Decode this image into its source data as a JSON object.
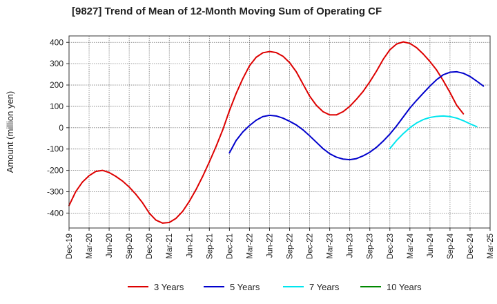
{
  "chart_data": {
    "type": "line",
    "title": "[9827]  Trend of Mean of 12-Month Moving Sum of Operating CF",
    "xlabel": "",
    "ylabel": "Amount (million yen)",
    "ylim": [
      -470,
      430
    ],
    "yticks": [
      -400,
      -300,
      -200,
      -100,
      0,
      100,
      200,
      300,
      400
    ],
    "xtick_labels": [
      "Dec-19",
      "Mar-20",
      "Jun-20",
      "Sep-20",
      "Dec-20",
      "Mar-21",
      "Jun-21",
      "Sep-21",
      "Dec-21",
      "Mar-22",
      "Jun-22",
      "Sep-22",
      "Dec-22",
      "Mar-23",
      "Jun-23",
      "Sep-23",
      "Dec-23",
      "Mar-24",
      "Jun-24",
      "Sep-24",
      "Dec-24",
      "Mar-25"
    ],
    "x_months": 63,
    "grid": true,
    "legend_position": "bottom",
    "series": [
      {
        "name": "3 Years",
        "color": "#dd0000",
        "start_month": 0,
        "values": [
          -365,
          -300,
          -255,
          -225,
          -205,
          -200,
          -210,
          -228,
          -250,
          -278,
          -312,
          -352,
          -400,
          -433,
          -447,
          -444,
          -425,
          -392,
          -345,
          -290,
          -228,
          -160,
          -88,
          -10,
          80,
          160,
          230,
          290,
          330,
          351,
          357,
          352,
          335,
          305,
          262,
          205,
          148,
          105,
          75,
          60,
          60,
          75,
          100,
          133,
          170,
          215,
          265,
          320,
          365,
          392,
          402,
          395,
          375,
          345,
          310,
          270,
          220,
          165,
          105,
          65
        ]
      },
      {
        "name": "5 Years",
        "color": "#0000cc",
        "start_month": 24,
        "values": [
          -118,
          -60,
          -20,
          10,
          35,
          52,
          58,
          55,
          45,
          30,
          13,
          -10,
          -38,
          -68,
          -98,
          -122,
          -138,
          -147,
          -150,
          -145,
          -132,
          -115,
          -92,
          -63,
          -30,
          8,
          50,
          92,
          128,
          162,
          195,
          225,
          248,
          260,
          262,
          255,
          240,
          218,
          195
        ]
      },
      {
        "name": "7 Years",
        "color": "#00e5ee",
        "start_month": 48,
        "values": [
          -98,
          -60,
          -28,
          0,
          22,
          38,
          48,
          53,
          55,
          52,
          45,
          33,
          18,
          5
        ]
      },
      {
        "name": "10 Years",
        "color": "#008800",
        "start_month": 0,
        "values": []
      }
    ]
  }
}
